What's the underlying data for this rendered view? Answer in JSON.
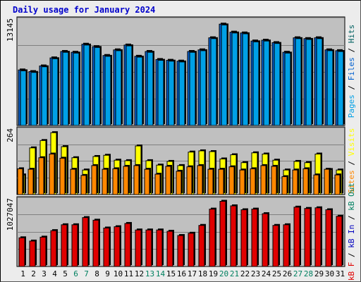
{
  "title": "Daily usage for January 2024",
  "colors": {
    "frame_bg": "#ececec",
    "plot_bg": "#c0c0c0",
    "grid": "#808080",
    "pages": "#00a0e6",
    "files": "#0060d0",
    "hits": "#006060",
    "visits": "#ffff00",
    "sites": "#ff8800",
    "kbf": "#e00000",
    "kbin": "#0000c0",
    "kbout": "#008060",
    "day_weekday": "#000000",
    "day_weekend": "#008060"
  },
  "chart_data": [
    {
      "type": "bar",
      "panel": "hits",
      "categories": [
        "1",
        "2",
        "3",
        "4",
        "5",
        "6",
        "7",
        "8",
        "9",
        "10",
        "11",
        "12",
        "13",
        "14",
        "15",
        "16",
        "17",
        "18",
        "19",
        "20",
        "21",
        "22",
        "23",
        "24",
        "25",
        "26",
        "27",
        "28",
        "29",
        "30",
        "31"
      ],
      "ymax_label": "13145",
      "ylim": [
        0,
        13145
      ],
      "grid": true,
      "legend": [
        "Pages",
        "Files",
        "Hits"
      ],
      "series": [
        {
          "name": "Hits",
          "values": [
            6900,
            6700,
            7400,
            8400,
            9200,
            9100,
            10100,
            9800,
            8700,
            9400,
            10000,
            8600,
            9200,
            8200,
            8100,
            8000,
            9200,
            9400,
            10900,
            12600,
            11600,
            11500,
            10500,
            10600,
            10300,
            9100,
            10900,
            10800,
            10900,
            9400,
            9300
          ]
        },
        {
          "name": "Files",
          "values": [
            6800,
            6600,
            7300,
            8300,
            9100,
            9000,
            10000,
            9700,
            8600,
            9300,
            9900,
            8500,
            9100,
            8100,
            8000,
            7900,
            9100,
            9300,
            10800,
            12500,
            11500,
            11400,
            10400,
            10500,
            10200,
            9000,
            10800,
            10700,
            10800,
            9300,
            9200
          ]
        }
      ]
    },
    {
      "type": "bar",
      "panel": "visits",
      "ymax_label": "264",
      "ylim": [
        0,
        264
      ],
      "grid": true,
      "legend": [
        "Visits",
        "Sites"
      ],
      "series": [
        {
          "name": "Visits",
          "values": [
            80,
            190,
            220,
            252,
            195,
            150,
            100,
            155,
            160,
            140,
            138,
            198,
            138,
            120,
            135,
            118,
            173,
            178,
            175,
            145,
            162,
            130,
            170,
            165,
            140,
            100,
            135,
            130,
            165,
            102,
            100
          ]
        },
        {
          "name": "Sites",
          "values": [
            105,
            103,
            150,
            165,
            148,
            103,
            78,
            118,
            103,
            105,
            115,
            118,
            103,
            83,
            115,
            95,
            113,
            118,
            103,
            103,
            113,
            100,
            105,
            118,
            115,
            73,
            100,
            105,
            80,
            103,
            80
          ]
        }
      ]
    },
    {
      "type": "bar",
      "panel": "kbytes",
      "ymax_label": "1027047",
      "ylim": [
        0,
        1027047
      ],
      "grid": true,
      "legend": [
        "kB F",
        "kB In",
        "kB Out"
      ],
      "series": [
        {
          "name": "kB F",
          "values": [
            440000,
            390000,
            450000,
            550000,
            640000,
            640000,
            750000,
            710000,
            590000,
            610000,
            660000,
            560000,
            560000,
            560000,
            540000,
            475000,
            510000,
            630000,
            880000,
            1000000,
            930000,
            870000,
            880000,
            810000,
            630000,
            640000,
            910000,
            890000,
            900000,
            870000,
            770000
          ]
        }
      ]
    }
  ],
  "weekend_days": [
    "6",
    "7",
    "13",
    "14",
    "20",
    "21",
    "27",
    "28"
  ]
}
